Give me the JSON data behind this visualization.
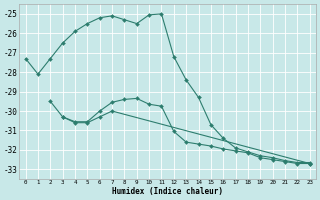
{
  "xlabel": "Humidex (Indice chaleur)",
  "ylabel": "",
  "background_color": "#c8e8e8",
  "grid_color": "#ffffff",
  "line_color": "#2d7d6e",
  "ylim": [
    -33.5,
    -24.5
  ],
  "xlim": [
    -0.5,
    23.5
  ],
  "yticks": [
    -33,
    -32,
    -31,
    -30,
    -29,
    -28,
    -27,
    -26,
    -25
  ],
  "xticks": [
    0,
    1,
    2,
    3,
    4,
    5,
    6,
    7,
    8,
    9,
    10,
    11,
    12,
    13,
    14,
    15,
    16,
    17,
    18,
    19,
    20,
    21,
    22,
    23
  ],
  "series": [
    {
      "x": [
        0,
        1,
        2,
        3,
        4,
        5,
        6,
        7,
        8,
        9,
        10,
        11,
        12,
        13,
        14,
        15,
        16,
        17,
        18,
        19,
        20,
        21,
        22,
        23
      ],
      "y": [
        -27.3,
        -28.1,
        -27.3,
        -26.5,
        -25.9,
        -25.5,
        -25.2,
        -25.1,
        -25.3,
        -25.5,
        -25.05,
        -25.0,
        -27.2,
        -28.4,
        -29.3,
        -30.7,
        -31.4,
        -31.9,
        -32.1,
        -32.3,
        -32.4,
        -32.55,
        -32.65,
        -32.65
      ]
    },
    {
      "x": [
        2,
        3,
        4,
        5,
        6,
        7,
        8,
        9,
        10,
        11,
        12,
        13,
        14,
        15,
        16,
        17,
        18,
        19,
        20,
        21,
        22,
        23
      ],
      "y": [
        -29.5,
        -30.3,
        -30.55,
        -30.55,
        -30.0,
        -29.55,
        -29.4,
        -29.35,
        -29.65,
        -29.75,
        -31.05,
        -31.6,
        -31.7,
        -31.8,
        -31.95,
        -32.05,
        -32.15,
        -32.4,
        -32.5,
        -32.6,
        -32.7,
        -32.7
      ]
    },
    {
      "x": [
        3,
        4,
        5,
        6,
        7,
        23
      ],
      "y": [
        -30.3,
        -30.6,
        -30.6,
        -30.3,
        -30.0,
        -32.7
      ]
    }
  ]
}
